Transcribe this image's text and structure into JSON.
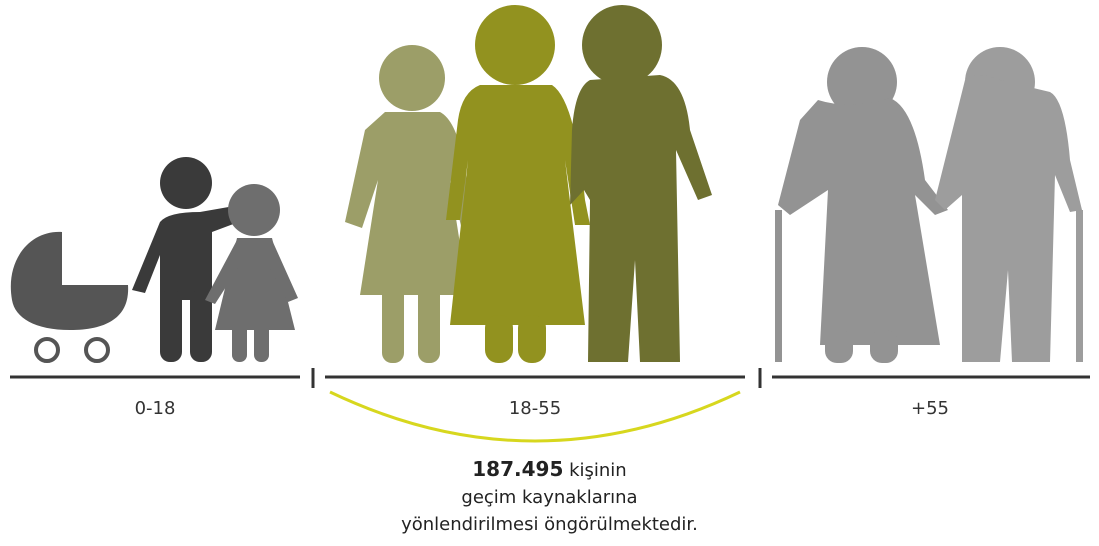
{
  "groups": [
    {
      "label": "0-18"
    },
    {
      "label": "18-55"
    },
    {
      "label": "+55"
    }
  ],
  "caption": {
    "highlight": "187.495",
    "line1_rest": "kişinin",
    "line2": "geçim kaynaklarına",
    "line3": "yönlendirilmesi öngörülmektedir."
  }
}
